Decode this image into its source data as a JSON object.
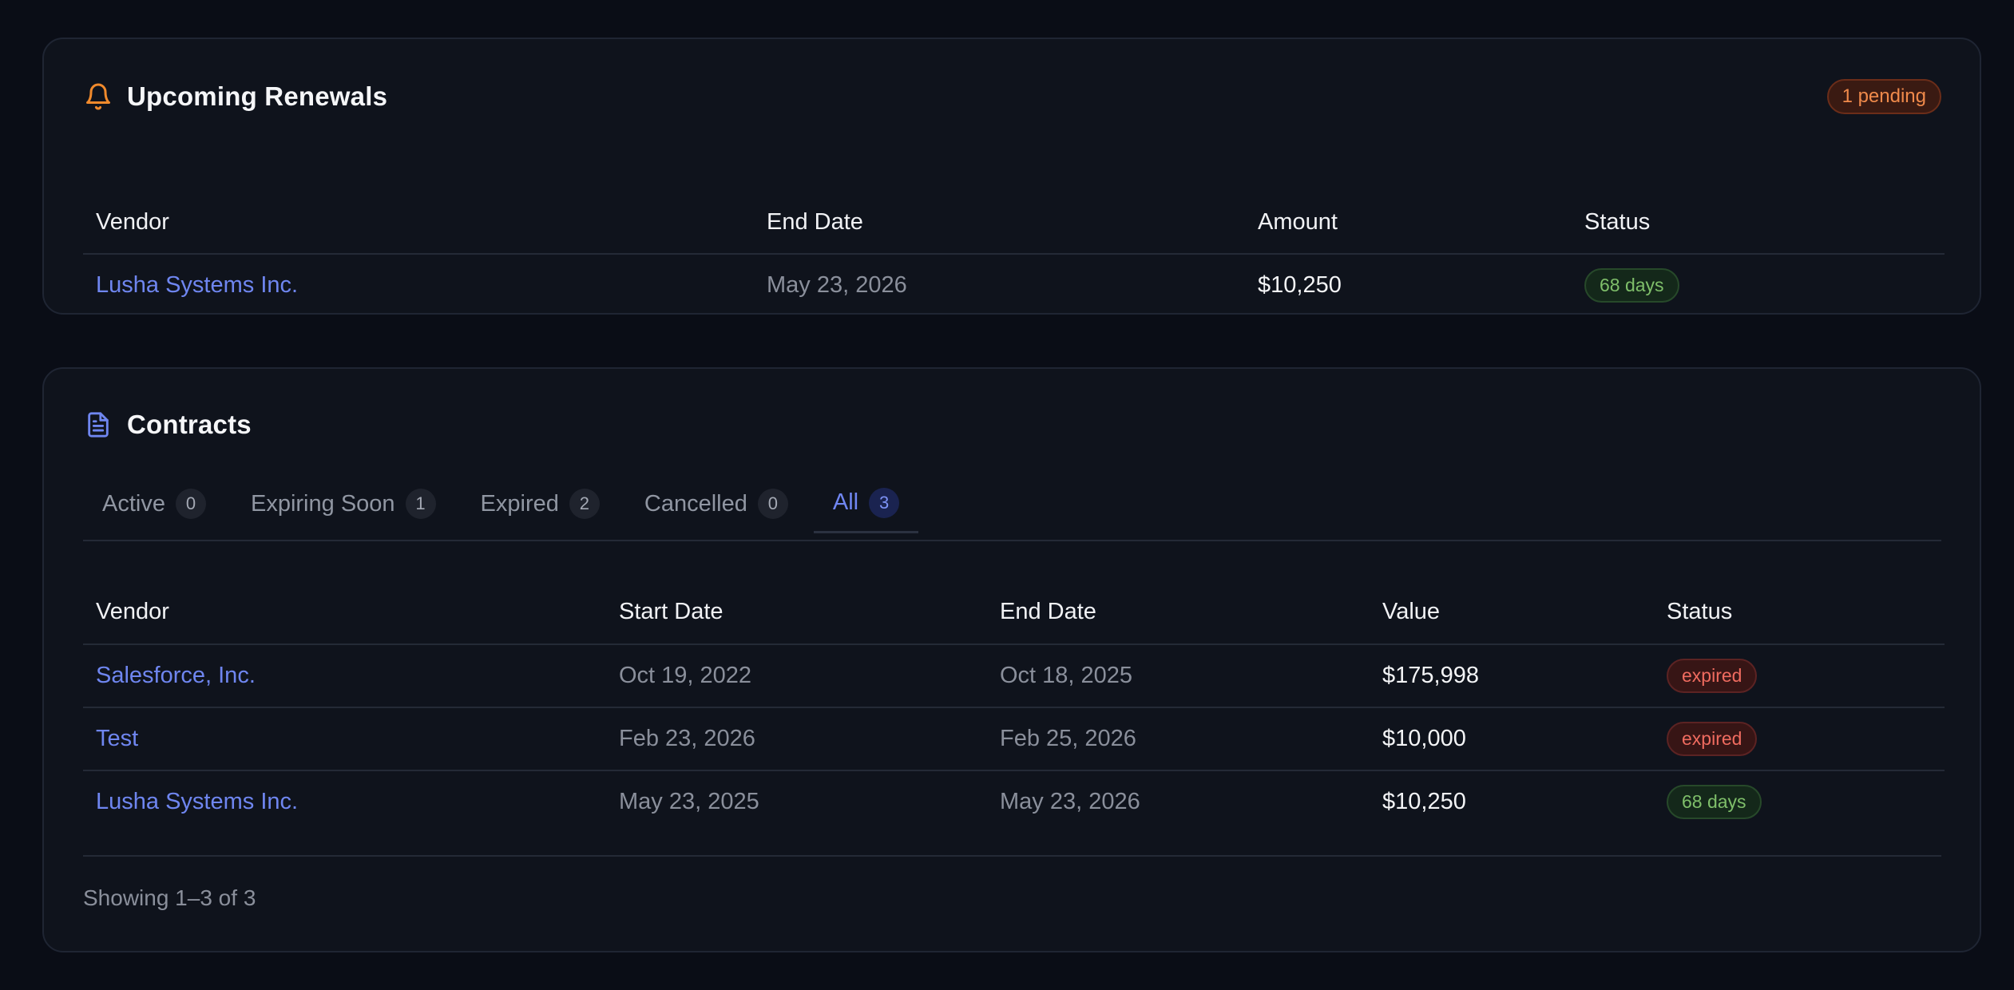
{
  "renewals": {
    "title": "Upcoming Renewals",
    "icon": "bell-icon",
    "pending_badge": "1 pending",
    "columns": [
      "Vendor",
      "End Date",
      "Amount",
      "Status"
    ],
    "rows": [
      {
        "vendor": "Lusha Systems Inc.",
        "end_date": "May 23, 2026",
        "amount": "$10,250",
        "status": "68 days"
      }
    ]
  },
  "contracts": {
    "title": "Contracts",
    "icon": "document-icon",
    "tabs": [
      {
        "label": "Active",
        "count": "0"
      },
      {
        "label": "Expiring Soon",
        "count": "1"
      },
      {
        "label": "Expired",
        "count": "2"
      },
      {
        "label": "Cancelled",
        "count": "0"
      },
      {
        "label": "All",
        "count": "3"
      }
    ],
    "active_tab": "All",
    "columns": [
      "Vendor",
      "Start Date",
      "End Date",
      "Value",
      "Status"
    ],
    "rows": [
      {
        "vendor": "Salesforce, Inc.",
        "start_date": "Oct 19, 2022",
        "end_date": "Oct 18, 2025",
        "value": "$175,998",
        "status": "expired"
      },
      {
        "vendor": "Test",
        "start_date": "Feb 23, 2026",
        "end_date": "Feb 25, 2026",
        "value": "$10,000",
        "status": "expired"
      },
      {
        "vendor": "Lusha Systems Inc.",
        "start_date": "May 23, 2025",
        "end_date": "May 23, 2026",
        "value": "$10,250",
        "status": "68 days"
      }
    ],
    "footer": "Showing 1–3 of 3"
  },
  "colors": {
    "background": "#0a0d16",
    "card": "#0f131c",
    "accent": "#6f86f0",
    "warning": "#f08a4b",
    "success": "#7fbf6a",
    "danger": "#ef6b5f"
  }
}
